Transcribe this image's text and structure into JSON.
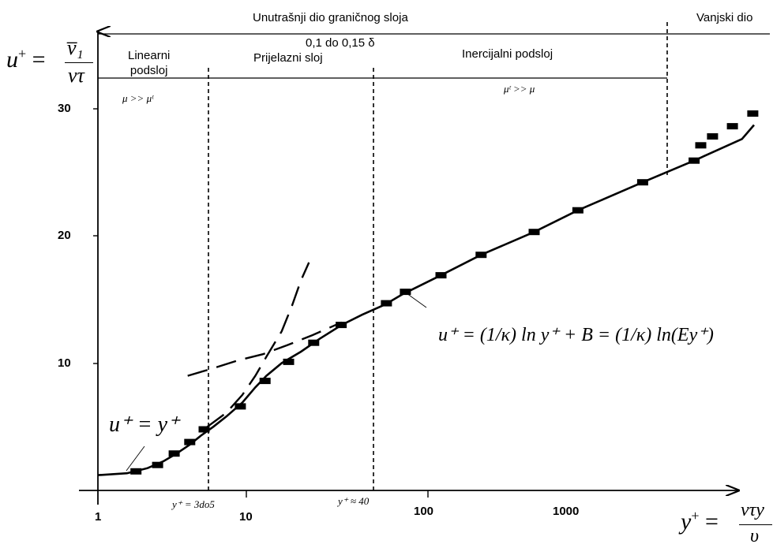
{
  "chart_data": {
    "type": "scatter",
    "x_scale": "log",
    "xlim": [
      1,
      9000
    ],
    "ylim": [
      0,
      33
    ],
    "grid": false,
    "xticks": [
      {
        "value": 1,
        "label": "1"
      },
      {
        "value": 10,
        "label": "10"
      },
      {
        "value": 100,
        "label": "100"
      },
      {
        "value": 1000,
        "label": "1000"
      }
    ],
    "yticks": [
      {
        "value": 10,
        "label": "10"
      },
      {
        "value": 20,
        "label": "20"
      },
      {
        "value": 30,
        "label": "30"
      }
    ],
    "ylabel": {
      "lhs": "u",
      "sup": "+",
      "num": "v̅₁",
      "den": "vτ"
    },
    "xlabel": {
      "lhs": "y",
      "sup": "+",
      "num": "vτy",
      "den": "υ"
    },
    "series": [
      {
        "marker": "filled-rectangle",
        "points": [
          {
            "x": 1.7,
            "y": 1.5
          },
          {
            "x": 2.3,
            "y": 2.0
          },
          {
            "x": 2.9,
            "y": 2.9
          },
          {
            "x": 3.6,
            "y": 3.8
          },
          {
            "x": 4.4,
            "y": 4.8
          },
          {
            "x": 7.3,
            "y": 6.6
          },
          {
            "x": 10.3,
            "y": 8.6
          },
          {
            "x": 14.3,
            "y": 10.1
          },
          {
            "x": 20.3,
            "y": 11.6
          },
          {
            "x": 29.8,
            "y": 13.0
          },
          {
            "x": 56,
            "y": 14.7
          },
          {
            "x": 73,
            "y": 15.6
          },
          {
            "x": 120,
            "y": 16.9
          },
          {
            "x": 210,
            "y": 18.5
          },
          {
            "x": 440,
            "y": 20.3
          },
          {
            "x": 810,
            "y": 22.0
          },
          {
            "x": 2000,
            "y": 24.2
          },
          {
            "x": 4100,
            "y": 25.9
          },
          {
            "x": 4500,
            "y": 27.1
          },
          {
            "x": 5300,
            "y": 27.8
          },
          {
            "x": 7000,
            "y": 28.6
          },
          {
            "x": 9300,
            "y": 29.6
          }
        ]
      }
    ],
    "curves": [
      {
        "style": "solid",
        "points": [
          [
            1,
            1.2
          ],
          [
            1.5,
            1.35
          ],
          [
            2,
            1.75
          ],
          [
            2.5,
            2.3
          ],
          [
            3,
            2.9
          ],
          [
            3.6,
            3.6
          ],
          [
            4.2,
            4.3
          ],
          [
            5,
            5.0
          ],
          [
            6,
            5.8
          ],
          [
            7.5,
            6.9
          ],
          [
            9,
            8.1
          ],
          [
            10.5,
            9.0
          ],
          [
            13,
            10.0
          ],
          [
            17,
            10.9
          ],
          [
            22,
            11.9
          ],
          [
            30,
            13.0
          ],
          [
            40,
            13.8
          ],
          [
            55,
            14.6
          ],
          [
            70,
            15.4
          ],
          [
            120,
            16.9
          ],
          [
            210,
            18.5
          ],
          [
            440,
            20.3
          ],
          [
            810,
            22.0
          ],
          [
            2000,
            24.2
          ],
          [
            4100,
            25.9
          ],
          [
            8000,
            27.6
          ],
          [
            12000,
            28.7
          ]
        ]
      },
      {
        "style": "dashed",
        "points": [
          [
            4.6,
            5.0
          ],
          [
            6,
            6.1
          ],
          [
            7.5,
            7.5
          ],
          [
            9,
            9.0
          ],
          [
            10.5,
            10.5
          ],
          [
            13,
            12.5
          ],
          [
            15,
            14.5
          ],
          [
            17,
            16.5
          ],
          [
            19,
            17.9
          ]
        ]
      },
      {
        "style": "dashed",
        "points": [
          [
            3.5,
            9.0
          ],
          [
            5,
            9.6
          ],
          [
            7,
            10.2
          ],
          [
            10,
            10.7
          ],
          [
            14,
            11.4
          ],
          [
            20,
            12.2
          ],
          [
            30,
            13.2
          ]
        ]
      }
    ],
    "regions": [
      {
        "label": "Linearni\npodsloj",
        "note": "μ >> μᵗ"
      },
      {
        "label": "Prijelazni sloj",
        "note": ""
      },
      {
        "label": "Inercijalni podsloj",
        "note": "μᵗ >> μ"
      }
    ],
    "top_labels": {
      "inner": "Unutrašnji dio graničnog sloja",
      "outer": "Vanjski dio",
      "boundary": "0,1 do 0,15 δ"
    },
    "annotations": {
      "y_plus_3to5": "y⁺ = 3do5",
      "y_plus_40": "y⁺ ≈ 40",
      "linear_law": "u⁺ = y⁺",
      "log_law": "u⁺ = (1/κ) ln y⁺ + B = (1/κ) ln(Ey⁺)"
    }
  }
}
